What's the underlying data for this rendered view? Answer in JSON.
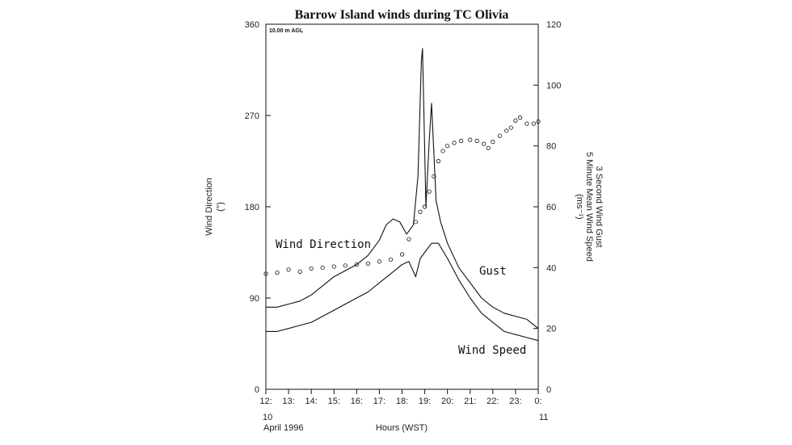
{
  "chart_data": {
    "type": "line",
    "title": "Barrow Island winds during TC Olivia",
    "height_note": "10.00 m AGL",
    "xlabel": "Hours (WST)",
    "date_label": "April 1996",
    "x_start_date": "10",
    "x_end_date": "11",
    "x_tick_labels": [
      "12:",
      "13:",
      "14:",
      "15:",
      "16:",
      "17:",
      "18:",
      "19:",
      "20:",
      "21:",
      "22:",
      "23:",
      "0:"
    ],
    "xlim": [
      12,
      24
    ],
    "y_left": {
      "label_line1": "Wind Direction",
      "label_line2": "(°)",
      "ticks": [
        "0",
        "90",
        "180",
        "270",
        "360"
      ],
      "range": [
        0,
        360
      ]
    },
    "y_right": {
      "label_line1": "(ms⁻¹)",
      "label_line2": "5 Minute Mean Wind Speed",
      "label_line3": "3 Second Wind Gust",
      "ticks": [
        "0",
        "20",
        "40",
        "60",
        "80",
        "100",
        "120"
      ],
      "range": [
        0,
        120
      ]
    },
    "annotations": {
      "direction": "Wind Direction",
      "gust": "Gust",
      "speed": "Wind Speed"
    },
    "series": [
      {
        "name": "Gust",
        "axis": "right",
        "x": [
          12.0,
          12.5,
          13.0,
          13.5,
          14.0,
          14.5,
          15.0,
          15.5,
          16.0,
          16.5,
          17.0,
          17.3,
          17.6,
          17.9,
          18.2,
          18.5,
          18.7,
          18.85,
          18.9,
          18.95,
          19.05,
          19.2,
          19.3,
          19.4,
          19.5,
          19.7,
          20.0,
          20.5,
          21.0,
          21.5,
          22.0,
          22.5,
          23.0,
          23.5,
          24.0
        ],
        "values": [
          27,
          27,
          28,
          29,
          31,
          34,
          37,
          39,
          41,
          44,
          49,
          54,
          56,
          55,
          51,
          54,
          70,
          108,
          112,
          95,
          60,
          82,
          94,
          78,
          62,
          55,
          48,
          40,
          35,
          30,
          27,
          25,
          24,
          23,
          20
        ]
      },
      {
        "name": "Wind Speed",
        "axis": "right",
        "x": [
          12.0,
          12.5,
          13.0,
          13.5,
          14.0,
          14.5,
          15.0,
          15.5,
          16.0,
          16.5,
          17.0,
          17.5,
          18.0,
          18.3,
          18.6,
          18.8,
          19.0,
          19.3,
          19.6,
          20.0,
          20.5,
          21.0,
          21.5,
          22.0,
          22.5,
          23.0,
          23.5,
          24.0
        ],
        "values": [
          19,
          19,
          20,
          21,
          22,
          24,
          26,
          28,
          30,
          32,
          35,
          38,
          41,
          42,
          37,
          43,
          45,
          48,
          48,
          43,
          36,
          30,
          25,
          22,
          19,
          18,
          17,
          16
        ]
      },
      {
        "name": "Wind Direction",
        "axis": "left",
        "x": [
          12.0,
          12.5,
          13.0,
          13.5,
          14.0,
          14.5,
          15.0,
          15.5,
          16.0,
          16.5,
          17.0,
          17.5,
          18.0,
          18.3,
          18.6,
          18.8,
          19.0,
          19.2,
          19.4,
          19.6,
          19.8,
          20.0,
          20.3,
          20.6,
          21.0,
          21.3,
          21.6,
          21.8,
          22.0,
          22.3,
          22.6,
          22.8,
          23.0,
          23.2,
          23.5,
          23.8,
          24.0
        ],
        "values": [
          114,
          115,
          118,
          116,
          119,
          120,
          121,
          122,
          123,
          124,
          126,
          128,
          133,
          148,
          165,
          175,
          180,
          195,
          210,
          225,
          235,
          240,
          243,
          245,
          246,
          245,
          242,
          238,
          244,
          250,
          255,
          258,
          265,
          268,
          262,
          262,
          264
        ]
      }
    ]
  }
}
